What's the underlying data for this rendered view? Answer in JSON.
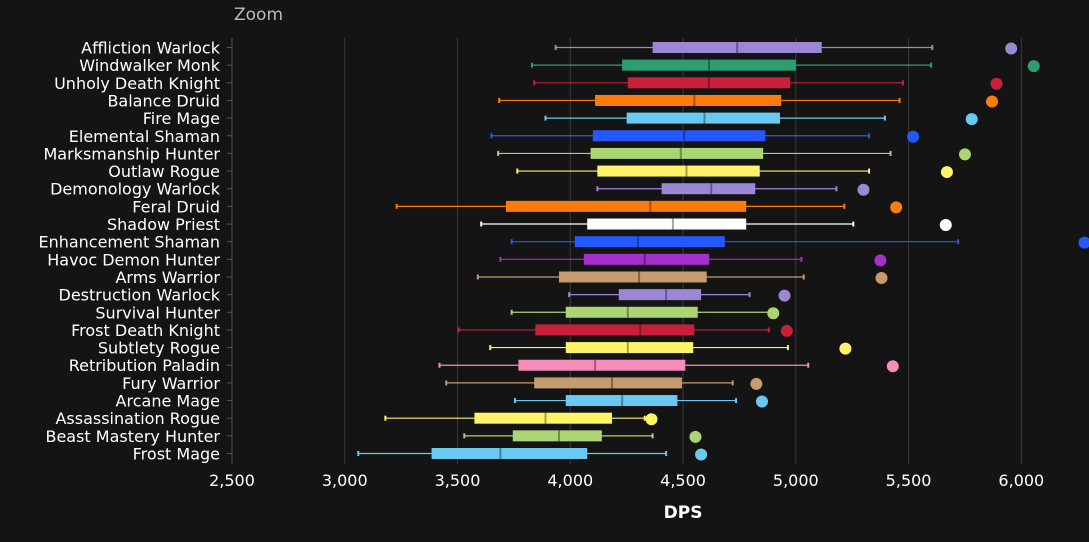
{
  "zoom_label": "Zoom",
  "chart_data": {
    "type": "boxplot",
    "xlabel": "DPS",
    "xlim": [
      2500,
      6300
    ],
    "x_ticks": [
      2500,
      3000,
      3500,
      4000,
      4500,
      5000,
      5500,
      6000
    ],
    "x_tick_labels": [
      "2,500",
      "3,000",
      "3,500",
      "4,000",
      "4,500",
      "5,000",
      "5,500",
      "6,000"
    ],
    "grid": "vertical",
    "categories": [
      {
        "name": "Affliction Warlock",
        "color": "#9b87d4",
        "min": 3935,
        "q1": 4365,
        "median": 4740,
        "q3": 5115,
        "max": 5605,
        "top": 5955
      },
      {
        "name": "Windwalker Monk",
        "color": "#2e9e72",
        "min": 3830,
        "q1": 4230,
        "median": 4615,
        "q3": 5000,
        "max": 5600,
        "top": 6055
      },
      {
        "name": "Unholy Death Knight",
        "color": "#c8203a",
        "min": 3840,
        "q1": 4255,
        "median": 4615,
        "q3": 4975,
        "max": 5475,
        "top": 5890
      },
      {
        "name": "Balance Druid",
        "color": "#ff7c0a",
        "min": 3685,
        "q1": 4110,
        "median": 4550,
        "q3": 4935,
        "max": 5460,
        "top": 5870
      },
      {
        "name": "Fire Mage",
        "color": "#69c9f0",
        "min": 3890,
        "q1": 4250,
        "median": 4595,
        "q3": 4930,
        "max": 5395,
        "top": 5780
      },
      {
        "name": "Elemental Shaman",
        "color": "#2459ff",
        "min": 3650,
        "q1": 4100,
        "median": 4505,
        "q3": 4865,
        "max": 5325,
        "top": 5520
      },
      {
        "name": "Marksmanship Hunter",
        "color": "#abd473",
        "min": 3680,
        "q1": 4090,
        "median": 4490,
        "q3": 4855,
        "max": 5420,
        "top": 5750
      },
      {
        "name": "Outlaw Rogue",
        "color": "#fff468",
        "min": 3765,
        "q1": 4120,
        "median": 4515,
        "q3": 4840,
        "max": 5325,
        "top": 5670
      },
      {
        "name": "Demonology Warlock",
        "color": "#9b87d4",
        "min": 4120,
        "q1": 4405,
        "median": 4625,
        "q3": 4820,
        "max": 5180,
        "top": 5300
      },
      {
        "name": "Feral Druid",
        "color": "#ff7c0a",
        "min": 3230,
        "q1": 3715,
        "median": 4355,
        "q3": 4780,
        "max": 5215,
        "top": 5445
      },
      {
        "name": "Shadow Priest",
        "color": "#ffffff",
        "min": 3605,
        "q1": 4075,
        "median": 4455,
        "q3": 4780,
        "max": 5255,
        "top": 5665
      },
      {
        "name": "Enhancement Shaman",
        "color": "#2459ff",
        "min": 3740,
        "q1": 4020,
        "median": 4300,
        "q3": 4685,
        "max": 5720,
        "top": 6280
      },
      {
        "name": "Havoc Demon Hunter",
        "color": "#a330c9",
        "min": 3690,
        "q1": 4060,
        "median": 4330,
        "q3": 4615,
        "max": 5025,
        "top": 5375
      },
      {
        "name": "Arms Warrior",
        "color": "#c69b6d",
        "min": 3590,
        "q1": 3950,
        "median": 4305,
        "q3": 4605,
        "max": 5035,
        "top": 5380
      },
      {
        "name": "Destruction Warlock",
        "color": "#9b87d4",
        "min": 3995,
        "q1": 4215,
        "median": 4425,
        "q3": 4580,
        "max": 4795,
        "top": 4950
      },
      {
        "name": "Survival Hunter",
        "color": "#abd473",
        "min": 3740,
        "q1": 3980,
        "median": 4255,
        "q3": 4565,
        "max": 4885,
        "top": 4900
      },
      {
        "name": "Frost Death Knight",
        "color": "#c8203a",
        "min": 3505,
        "q1": 3845,
        "median": 4310,
        "q3": 4550,
        "max": 4880,
        "top": 4960
      },
      {
        "name": "Subtlety Rogue",
        "color": "#fff468",
        "min": 3645,
        "q1": 3980,
        "median": 4255,
        "q3": 4545,
        "max": 4965,
        "top": 5220
      },
      {
        "name": "Retribution Paladin",
        "color": "#f58cba",
        "min": 3420,
        "q1": 3770,
        "median": 4110,
        "q3": 4510,
        "max": 5055,
        "top": 5430
      },
      {
        "name": "Fury Warrior",
        "color": "#c69b6d",
        "min": 3450,
        "q1": 3840,
        "median": 4185,
        "q3": 4495,
        "max": 4720,
        "top": 4825
      },
      {
        "name": "Arcane Mage",
        "color": "#69c9f0",
        "min": 3755,
        "q1": 3980,
        "median": 4230,
        "q3": 4475,
        "max": 4735,
        "top": 4850
      },
      {
        "name": "Assassination Rogue",
        "color": "#fff468",
        "min": 3180,
        "q1": 3575,
        "median": 3890,
        "q3": 4185,
        "max": 4330,
        "top": 4360
      },
      {
        "name": "Beast Mastery Hunter",
        "color": "#abd473",
        "min": 3530,
        "q1": 3745,
        "median": 3950,
        "q3": 4140,
        "max": 4365,
        "top": 4555
      },
      {
        "name": "Frost Mage",
        "color": "#69c9f0",
        "min": 3060,
        "q1": 3385,
        "median": 3690,
        "q3": 4075,
        "max": 4425,
        "top": 4580
      }
    ]
  }
}
